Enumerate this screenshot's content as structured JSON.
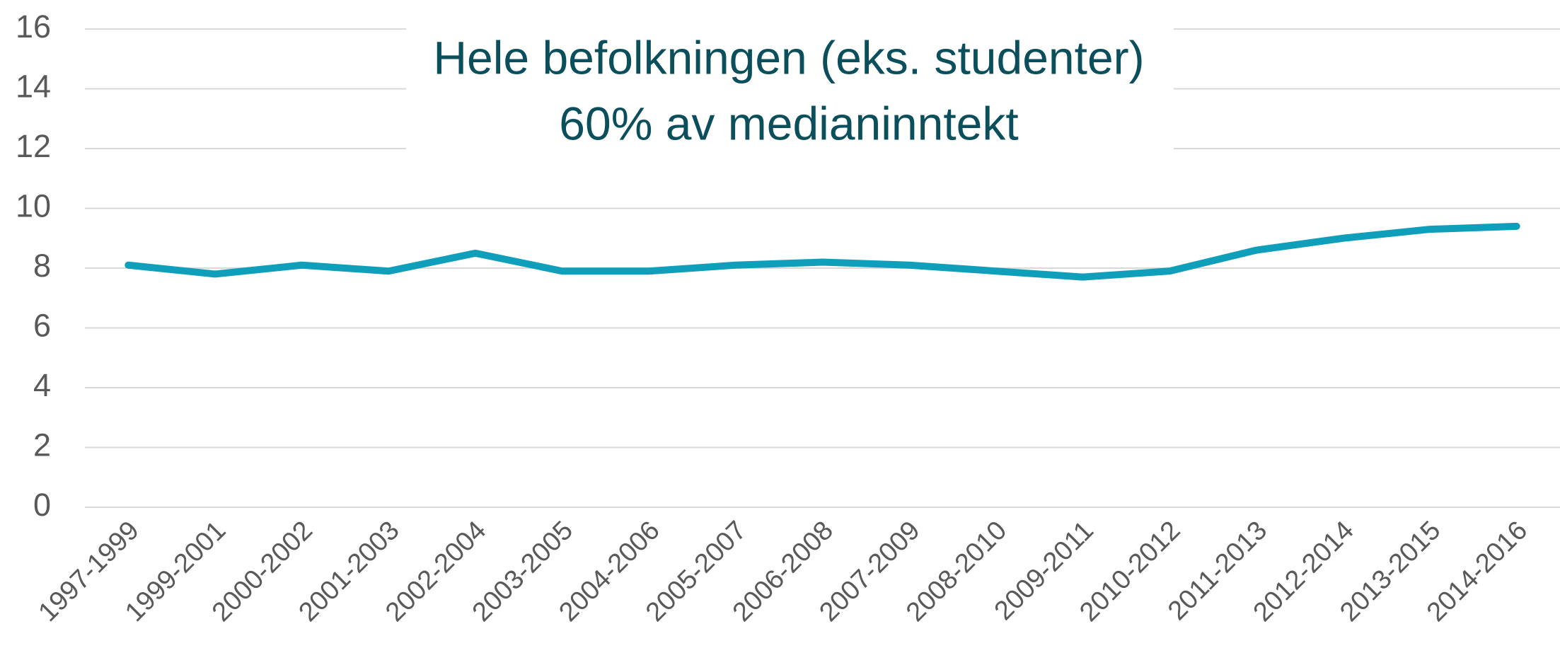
{
  "chart_data": {
    "type": "line",
    "title": "Hele befolkningen (eks. studenter)",
    "subtitle": "60% av medianinntekt",
    "categories": [
      "1997-1999",
      "1999-2001",
      "2000-2002",
      "2001-2003",
      "2002-2004",
      "2003-2005",
      "2004-2006",
      "2005-2007",
      "2006-2008",
      "2007-2009",
      "2008-2010",
      "2009-2011",
      "2010-2012",
      "2011-2013",
      "2012-2014",
      "2013-2015",
      "2014-2016"
    ],
    "values": [
      8.1,
      7.8,
      8.1,
      7.9,
      8.5,
      7.9,
      7.9,
      8.1,
      8.2,
      8.1,
      7.9,
      7.7,
      7.9,
      8.6,
      9.0,
      9.3,
      9.4
    ],
    "color": "#109fba",
    "ylim": [
      0,
      16
    ],
    "yticks": [
      0,
      2,
      4,
      6,
      8,
      10,
      12,
      14,
      16
    ],
    "grid": true
  }
}
